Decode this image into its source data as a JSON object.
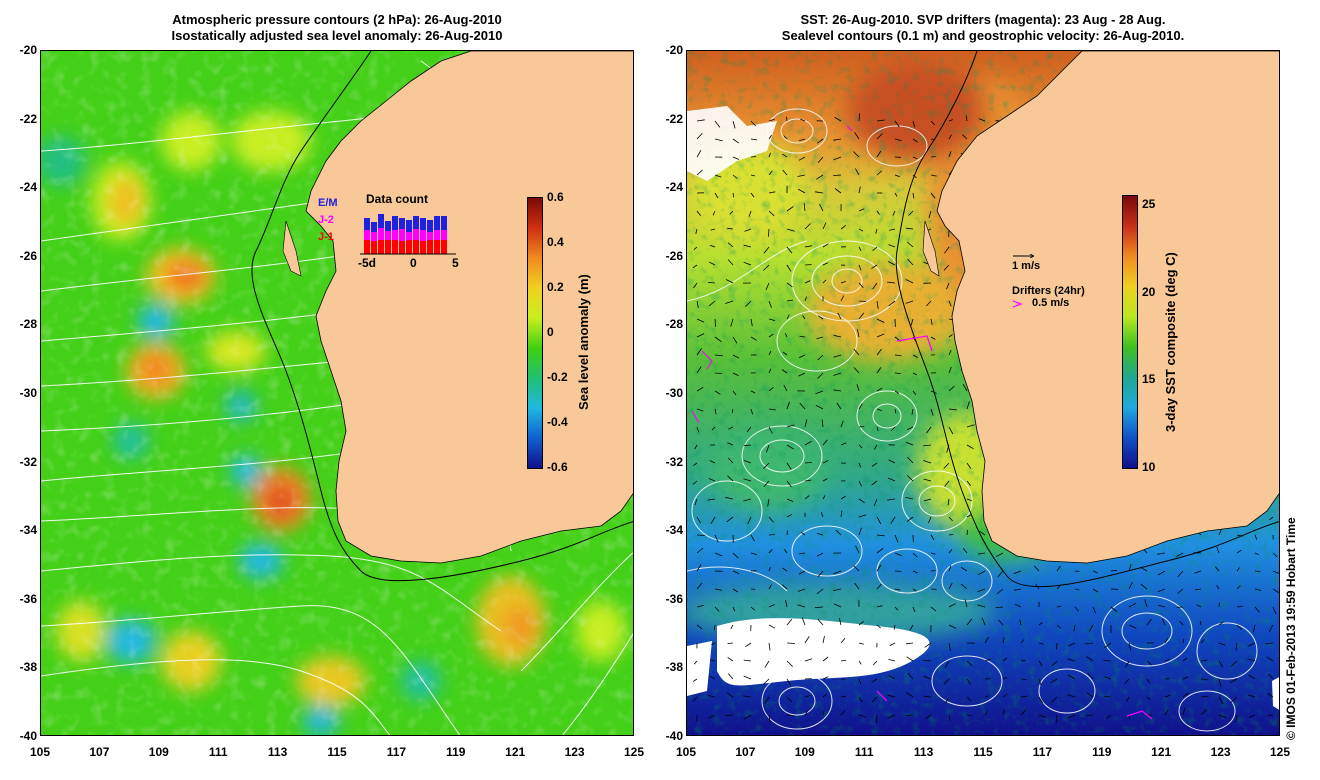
{
  "left_panel": {
    "title_line1": "Atmospheric pressure contours (2 hPa): 26-Aug-2010",
    "title_line2": "Isostatically adjusted sea level anomaly: 26-Aug-2010",
    "colorbar": {
      "label": "Sea level anomaly (m)",
      "ticks": [
        "0.6",
        "0.4",
        "0.2",
        "0",
        "-0.2",
        "-0.4",
        "-0.6"
      ],
      "range": [
        -0.6,
        0.6
      ],
      "colors": [
        "#7a0a0a",
        "#d03010",
        "#f08a20",
        "#f0d020",
        "#c8ee20",
        "#40d010",
        "#20c070",
        "#20b8e0",
        "#1060d0",
        "#10108a"
      ]
    },
    "data_count_inset": {
      "title": "Data count",
      "missions": [
        "E/M",
        "J-2",
        "J-1"
      ],
      "mission_colors": [
        "#2020e0",
        "#ff00ff",
        "#ff0000"
      ],
      "x_ticks": [
        "-5d",
        "0",
        "5"
      ]
    }
  },
  "right_panel": {
    "title_line1": "SST: 26-Aug-2010. SVP drifters (magenta): 23 Aug - 28 Aug.",
    "title_line2": "Sealevel contours (0.1 m) and geostrophic velocity: 26-Aug-2010.",
    "colorbar": {
      "label": "3-day SST composite (deg C)",
      "ticks": [
        "25",
        "20",
        "15",
        "10"
      ],
      "range": [
        10,
        25.5
      ],
      "colors": [
        "#7a0a0a",
        "#c83018",
        "#f08a20",
        "#f0d020",
        "#b8e820",
        "#40c020",
        "#20a890",
        "#20a8e0",
        "#1050c8",
        "#10108a"
      ]
    },
    "velocity_legend": "1 m/s",
    "drifter_legend_title": "Drifters (24hr)",
    "drifter_legend_value": "0.5 m/s"
  },
  "axes": {
    "y_ticks": [
      "-20",
      "-22",
      "-24",
      "-26",
      "-28",
      "-30",
      "-32",
      "-34",
      "-36",
      "-38",
      "-40"
    ],
    "x_ticks": [
      "105",
      "107",
      "109",
      "111",
      "113",
      "115",
      "117",
      "119",
      "121",
      "123",
      "125"
    ],
    "lat_range": [
      -40,
      -20
    ],
    "lon_range": [
      105,
      125
    ]
  },
  "colors": {
    "land": "#f8c898",
    "coast_shelf": "#000000",
    "contour": "#ffffff",
    "drifter": "#ff00ff",
    "cloud": "#ffffff"
  },
  "credit": "© IMOS 01-Feb-2013 19:59 Hobart Time"
}
